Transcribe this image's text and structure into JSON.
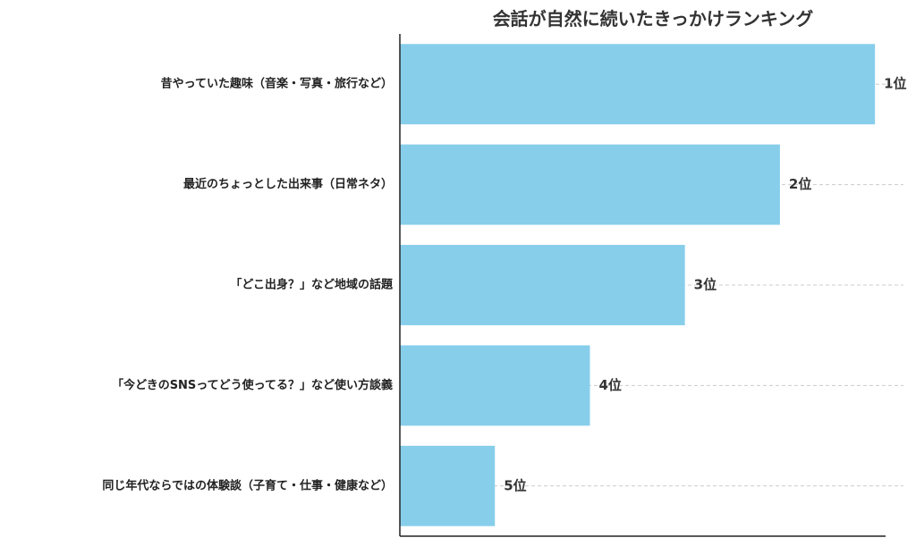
{
  "chart_data": {
    "type": "bar",
    "orientation": "horizontal",
    "title": "会話が自然に続いたきっかけランキング",
    "xlabel": "",
    "ylabel": "",
    "categories": [
      "昔やっていた趣味（音楽・写真・旅行など）",
      "最近のちょっとした出来事（日常ネタ）",
      "「どこ出身？」など地域の話題",
      "「今どきのSNSってどう使ってる？」など使い方談義",
      "同じ年代ならではの体験談（子育て・仕事・健康など）"
    ],
    "values": [
      5,
      4,
      3,
      2,
      1
    ],
    "labels": [
      "1位",
      "2位",
      "3位",
      "4位",
      "5位"
    ],
    "xlim": [
      0,
      5.3
    ],
    "grid": "dashed horizontal lines at each bar",
    "colors": {
      "bar": "#87ceeb",
      "axis": "#222222",
      "grid": "#cccccc"
    }
  }
}
